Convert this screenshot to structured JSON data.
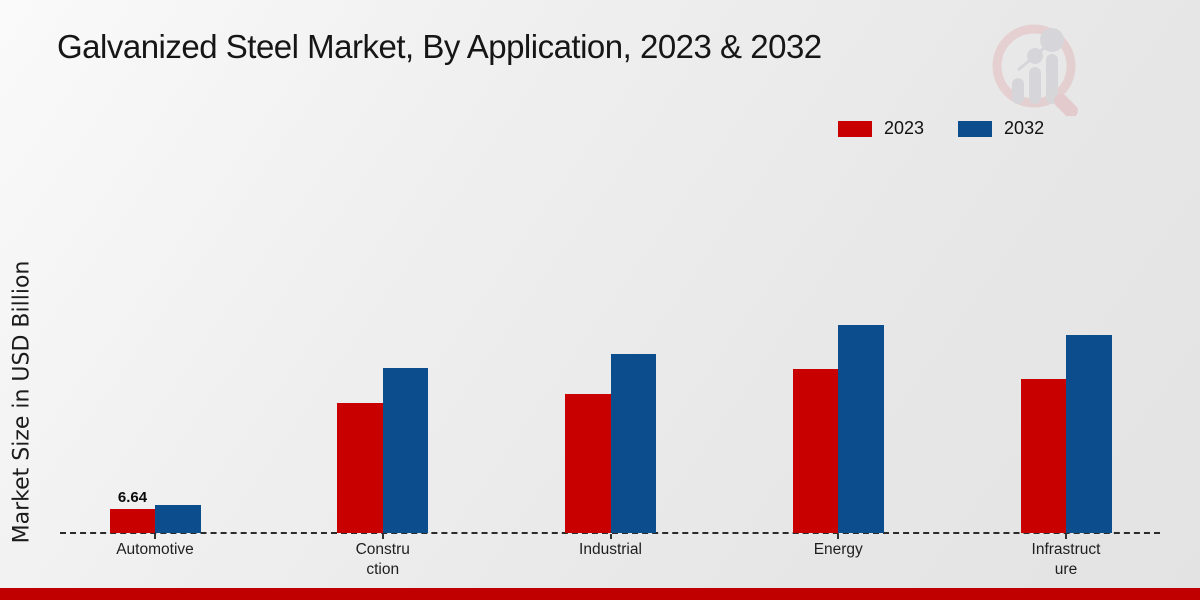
{
  "title": "Galvanized Steel Market, By Application, 2023 & 2032",
  "legend": [
    {
      "label": "2023",
      "color": "#c90000"
    },
    {
      "label": "2032",
      "color": "#0b4d8d"
    }
  ],
  "branding": {
    "logo_icon": "magnifier-bar-chart-watermark",
    "bottom_bar_color": "#c00000"
  },
  "chart_data": {
    "type": "bar",
    "title": "Galvanized Steel Market, By Application, 2023 & 2032",
    "ylabel": "Market Size in USD Billion",
    "xlabel": "",
    "categories": [
      "Automotive",
      "Construction",
      "Industrial",
      "Energy",
      "Infrastructure"
    ],
    "category_label_lines": [
      [
        "Automotive"
      ],
      [
        "Constru",
        "ction"
      ],
      [
        "Industrial"
      ],
      [
        "Energy"
      ],
      [
        "Infrastruct",
        "ure"
      ]
    ],
    "series": [
      {
        "name": "2023",
        "color": "#c90000",
        "values": [
          6.64,
          36.0,
          38.4,
          45.4,
          42.6
        ]
      },
      {
        "name": "2032",
        "color": "#0b4d8d",
        "values": [
          7.7,
          45.6,
          49.5,
          57.6,
          54.8
        ]
      }
    ],
    "annotations": [
      {
        "category": "Automotive",
        "series": "2023",
        "text": "6.64"
      }
    ],
    "ylim": [
      0,
      60
    ],
    "grid": false,
    "baseline_style": "dashed",
    "legend_position": "top-right",
    "y_axis_ticks_visible": false
  }
}
